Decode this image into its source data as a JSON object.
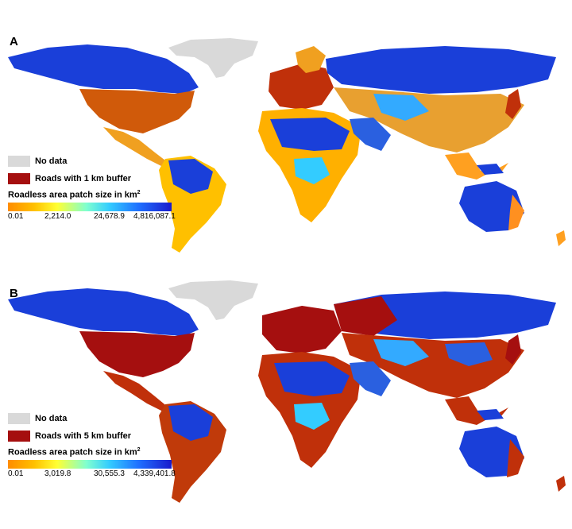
{
  "panels": [
    {
      "label": "A",
      "legend": {
        "no_data": "No data",
        "roads": "Roads with 1 km buffer",
        "gradient_title": "Roadless area patch size in km",
        "gradient_sup": "2",
        "ticks": [
          "0.01",
          "2,214.0",
          "24,678.9",
          "4,816,087.1"
        ]
      }
    },
    {
      "label": "B",
      "legend": {
        "no_data": "No data",
        "roads": "Roads with 5 km buffer",
        "gradient_title": "Roadless area patch size in km",
        "gradient_sup": "2",
        "ticks": [
          "0.01",
          "3,019.8",
          "30,555.3",
          "4,339,401.8"
        ]
      }
    }
  ],
  "colors": {
    "no_data": "#d9d9d9",
    "roads": "#a50f0f",
    "large_patch": "#1a3fd9",
    "mid_patch": "#33ccff",
    "small_patch": "#ffa000"
  }
}
